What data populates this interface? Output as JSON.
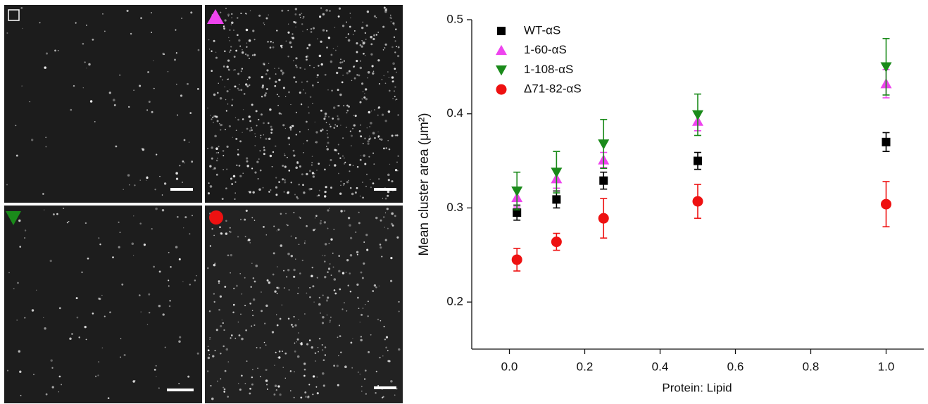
{
  "chart_data": {
    "type": "scatter",
    "x_label": "Protein: Lipid",
    "y_label": "Mean cluster area (μm²)",
    "xlim": [
      -0.1,
      1.1
    ],
    "xticks": [
      {
        "value": 0,
        "label": "0.0"
      },
      0.2,
      0.4,
      0.6,
      0.8,
      {
        "value": 1,
        "label": "1.0"
      }
    ],
    "ylim": [
      0.15,
      0.5
    ],
    "yticks": [
      0.2,
      0.3,
      0.4,
      0.5
    ],
    "legend": "upper-left",
    "x": [
      0.02,
      0.125,
      0.25,
      0.5,
      1.0
    ],
    "series": [
      {
        "name": "WT-αS",
        "color": "#000000",
        "marker": "square",
        "values": [
          0.295,
          0.309,
          0.329,
          0.35,
          0.37
        ],
        "errors": [
          0.008,
          0.009,
          0.009,
          0.009,
          0.01
        ]
      },
      {
        "name": "1-60-αS",
        "color": "#ee44ee",
        "marker": "triangle-up",
        "values": [
          0.311,
          0.331,
          0.351,
          0.392,
          0.432
        ],
        "errors": [
          0.01,
          0.01,
          0.008,
          0.01,
          0.015
        ]
      },
      {
        "name": "1-108-αS",
        "color": "#1a8a1a",
        "marker": "triangle-down",
        "values": [
          0.318,
          0.338,
          0.368,
          0.399,
          0.45
        ],
        "errors": [
          0.02,
          0.022,
          0.026,
          0.022,
          0.03
        ]
      },
      {
        "name": "Δ71-82-αS",
        "color": "#ee1111",
        "marker": "circle",
        "values": [
          0.245,
          0.264,
          0.289,
          0.307,
          0.304
        ],
        "errors": [
          0.012,
          0.009,
          0.021,
          0.018,
          0.024
        ]
      }
    ]
  }
}
